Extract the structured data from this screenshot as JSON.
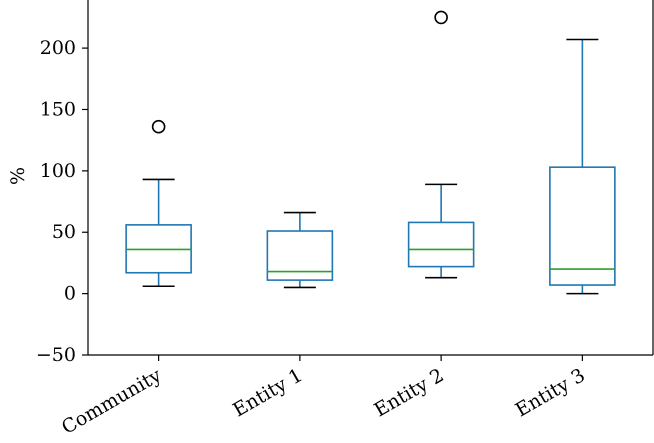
{
  "chart_data": {
    "type": "box",
    "ylabel": "%",
    "ylim": [
      -50,
      240
    ],
    "yticks": [
      -50,
      0,
      50,
      100,
      150,
      200
    ],
    "grid": false,
    "categories": [
      "Community",
      "Entity 1",
      "Entity 2",
      "Entity 3"
    ],
    "boxes": [
      {
        "name": "Community",
        "whisker_low": 6,
        "q1": 17,
        "median": 36,
        "q3": 56,
        "whisker_high": 93,
        "outliers": [
          136
        ]
      },
      {
        "name": "Entity 1",
        "whisker_low": 5,
        "q1": 11,
        "median": 18,
        "q3": 51,
        "whisker_high": 66,
        "outliers": []
      },
      {
        "name": "Entity 2",
        "whisker_low": 13,
        "q1": 22,
        "median": 36,
        "q3": 58,
        "whisker_high": 89,
        "outliers": [
          225
        ]
      },
      {
        "name": "Entity 3",
        "whisker_low": 0,
        "q1": 7,
        "median": 20,
        "q3": 103,
        "whisker_high": 207,
        "outliers": []
      }
    ],
    "colors": {
      "box": "#1f77b4",
      "median": "#2ca02c",
      "whisker": "#000000",
      "outlier": "#000000",
      "axis": "#000000"
    }
  }
}
